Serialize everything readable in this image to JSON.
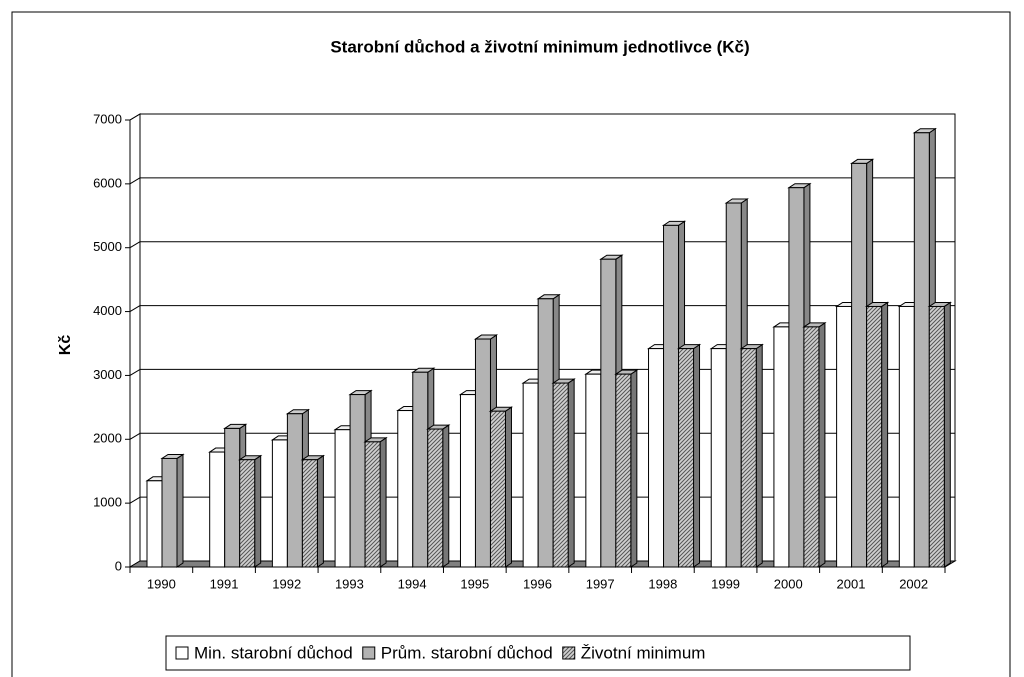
{
  "chart_data": {
    "type": "bar3d",
    "title": "Starobní důchod a životní minimum jednotlivce (Kč)",
    "y_label": "Kč",
    "categories": [
      "1990",
      "1991",
      "1992",
      "1993",
      "1994",
      "1995",
      "1996",
      "1997",
      "1998",
      "1999",
      "2000",
      "2001",
      "2002"
    ],
    "series": [
      {
        "name": "Min. starobní důchod",
        "color": "#ffffff",
        "values": [
          1350,
          1800,
          1990,
          2150,
          2450,
          2700,
          2880,
          3020,
          3420,
          3420,
          3760,
          4080,
          4080
        ]
      },
      {
        "name": "Prům. starobní důchod",
        "color": "#b3b3b3",
        "values": [
          1700,
          2170,
          2400,
          2700,
          3050,
          3570,
          4200,
          4820,
          5350,
          5700,
          5940,
          6320,
          6800
        ]
      },
      {
        "name": "Životní minimum",
        "color": "hatch",
        "values": [
          null,
          1680,
          1680,
          1960,
          2160,
          2440,
          2880,
          3020,
          3420,
          3420,
          3760,
          4080,
          4080
        ]
      }
    ],
    "ylim": [
      0,
      7000
    ],
    "yticks": [
      0,
      1000,
      2000,
      3000,
      4000,
      5000,
      6000,
      7000
    ],
    "grid": true
  }
}
